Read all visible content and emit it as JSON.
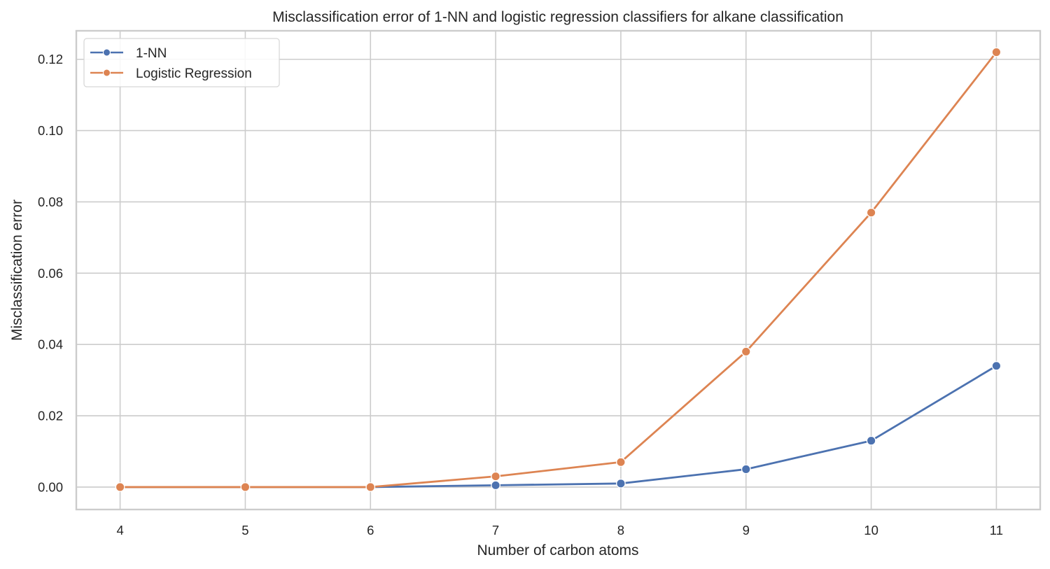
{
  "chart_data": {
    "type": "line",
    "title": "Misclassification error of 1-NN and logistic regression classifiers for alkane classification",
    "xlabel": "Number of carbon atoms",
    "ylabel": "Misclassification error",
    "x": [
      4,
      5,
      6,
      7,
      8,
      9,
      10,
      11
    ],
    "xticks": [
      "4",
      "5",
      "6",
      "7",
      "8",
      "9",
      "10",
      "11"
    ],
    "yticks": [
      "0.00",
      "0.02",
      "0.04",
      "0.06",
      "0.08",
      "0.10",
      "0.12"
    ],
    "ytick_values": [
      0.0,
      0.02,
      0.04,
      0.06,
      0.08,
      0.1,
      0.12
    ],
    "xlim": [
      3.65,
      11.35
    ],
    "ylim": [
      -0.0063,
      0.128
    ],
    "grid": true,
    "legend_position": "upper left",
    "series": [
      {
        "name": "1-NN",
        "color": "#4c72b0",
        "marker": "circle",
        "values": [
          0.0,
          0.0,
          0.0,
          0.0005,
          0.001,
          0.005,
          0.013,
          0.034
        ]
      },
      {
        "name": "Logistic Regression",
        "color": "#dd8452",
        "marker": "circle",
        "values": [
          0.0,
          0.0,
          0.0,
          0.003,
          0.007,
          0.038,
          0.077,
          0.122
        ]
      }
    ]
  },
  "legend": {
    "items": [
      {
        "label": "1-NN",
        "color": "#4c72b0"
      },
      {
        "label": "Logistic Regression",
        "color": "#dd8452"
      }
    ]
  },
  "style": {
    "grid_color": "#cccccc",
    "background": "#ffffff",
    "text_color": "#262626"
  }
}
